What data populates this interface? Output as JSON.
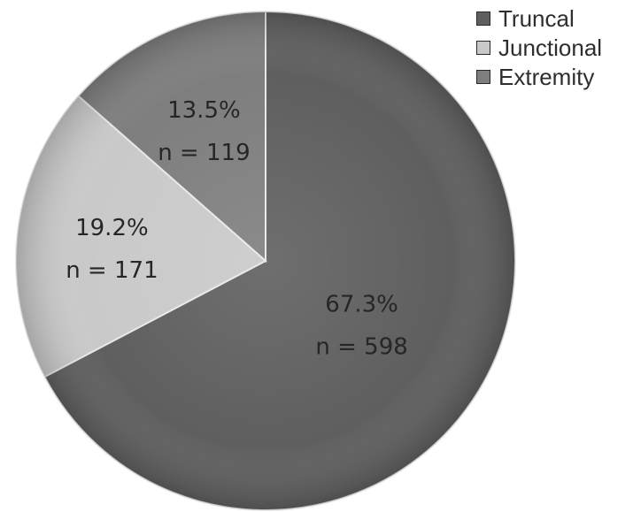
{
  "chart_data": {
    "type": "pie",
    "title": "",
    "slices": [
      {
        "name": "Truncal",
        "percent": 67.3,
        "n": 598,
        "percent_label": "67.3%",
        "n_label": "n = 598",
        "color": "#5f5f5f"
      },
      {
        "name": "Junctional",
        "percent": 19.2,
        "n": 171,
        "percent_label": "19.2%",
        "n_label": "n = 171",
        "color": "#c9c9c9"
      },
      {
        "name": "Extremity",
        "percent": 13.5,
        "n": 119,
        "percent_label": "13.5%",
        "n_label": "n = 119",
        "color": "#7e7e7e"
      }
    ],
    "legend": {
      "position": "top-right",
      "entries": [
        "Truncal",
        "Junctional",
        "Extremity"
      ]
    }
  }
}
